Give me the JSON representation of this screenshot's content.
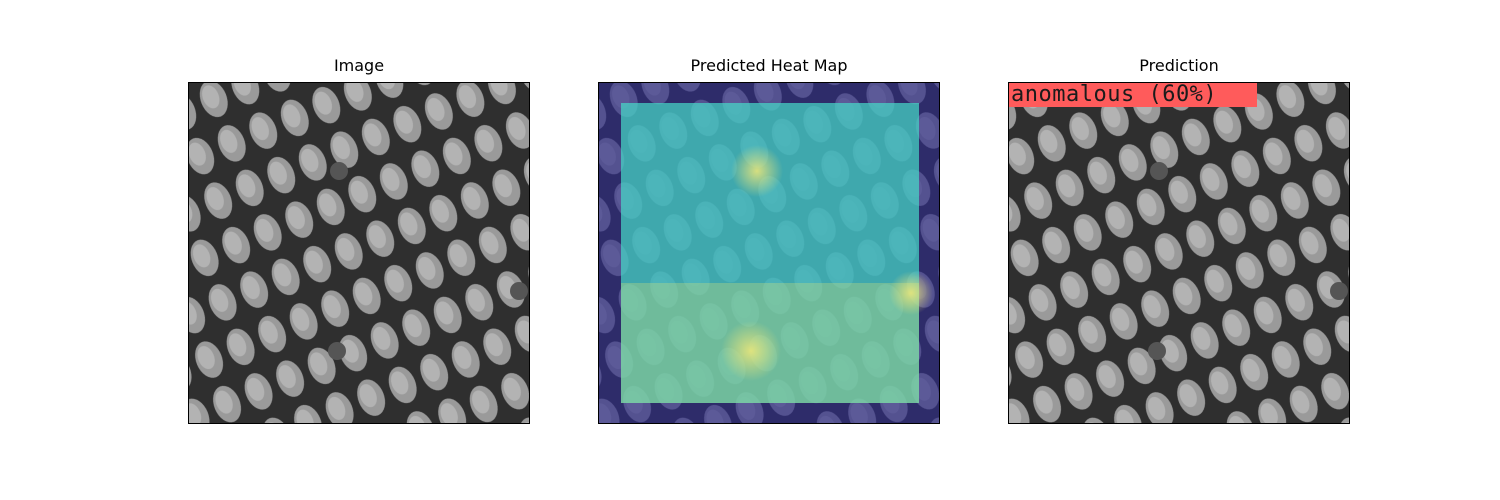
{
  "panels": [
    {
      "title": "Image"
    },
    {
      "title": "Predicted Heat Map"
    },
    {
      "title": "Prediction"
    }
  ],
  "prediction": {
    "label": "anomalous (60%)",
    "label_color": "#ff5b5b"
  },
  "heatmap": {
    "outer_color": "#2e2b8a",
    "inner_color": "#3fd6c8",
    "hot_color": "#e8e070"
  },
  "texture": {
    "base": "#8f8f8f",
    "cell": "#a9a9a9",
    "groove": "#2f2f2f"
  }
}
